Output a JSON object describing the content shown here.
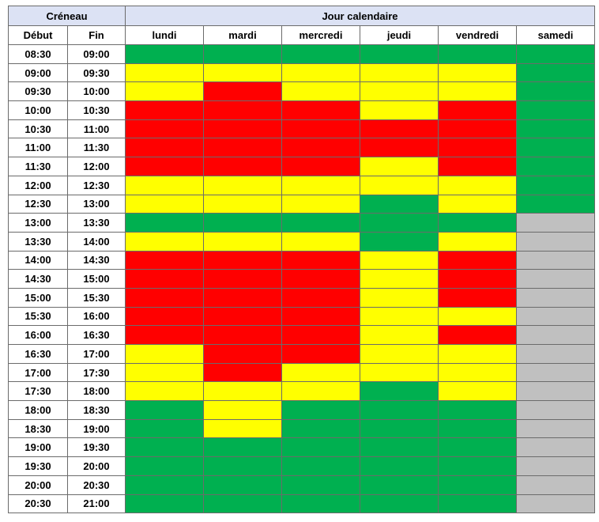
{
  "header": {
    "group_slot": "Créneau",
    "group_day": "Jour calendaire",
    "start": "Début",
    "end": "Fin",
    "days": [
      "lundi",
      "mardi",
      "mercredi",
      "jeudi",
      "vendredi",
      "samedi"
    ]
  },
  "rows": [
    {
      "start": "08:30",
      "end": "09:00",
      "cells": [
        "#00b050",
        "#00b050",
        "#00b050",
        "#00b050",
        "#00b050",
        "#00b050"
      ]
    },
    {
      "start": "09:00",
      "end": "09:30",
      "cells": [
        "#ffff00",
        "#ffff00",
        "#ffff00",
        "#ffff00",
        "#ffff00",
        "#00b050"
      ]
    },
    {
      "start": "09:30",
      "end": "10:00",
      "cells": [
        "#ffff00",
        "#ff0000",
        "#ffff00",
        "#ffff00",
        "#ffff00",
        "#00b050"
      ]
    },
    {
      "start": "10:00",
      "end": "10:30",
      "cells": [
        "#ff0000",
        "#ff0000",
        "#ff0000",
        "#ffff00",
        "#ff0000",
        "#00b050"
      ]
    },
    {
      "start": "10:30",
      "end": "11:00",
      "cells": [
        "#ff0000",
        "#ff0000",
        "#ff0000",
        "#ff0000",
        "#ff0000",
        "#00b050"
      ]
    },
    {
      "start": "11:00",
      "end": "11:30",
      "cells": [
        "#ff0000",
        "#ff0000",
        "#ff0000",
        "#ff0000",
        "#ff0000",
        "#00b050"
      ]
    },
    {
      "start": "11:30",
      "end": "12:00",
      "cells": [
        "#ff0000",
        "#ff0000",
        "#ff0000",
        "#ffff00",
        "#ff0000",
        "#00b050"
      ]
    },
    {
      "start": "12:00",
      "end": "12:30",
      "cells": [
        "#ffff00",
        "#ffff00",
        "#ffff00",
        "#ffff00",
        "#ffff00",
        "#00b050"
      ]
    },
    {
      "start": "12:30",
      "end": "13:00",
      "cells": [
        "#ffff00",
        "#ffff00",
        "#ffff00",
        "#00b050",
        "#ffff00",
        "#00b050"
      ]
    },
    {
      "start": "13:00",
      "end": "13:30",
      "cells": [
        "#00b050",
        "#00b050",
        "#00b050",
        "#00b050",
        "#00b050",
        "#c0c0c0"
      ]
    },
    {
      "start": "13:30",
      "end": "14:00",
      "cells": [
        "#ffff00",
        "#ffff00",
        "#ffff00",
        "#00b050",
        "#ffff00",
        "#c0c0c0"
      ]
    },
    {
      "start": "14:00",
      "end": "14:30",
      "cells": [
        "#ff0000",
        "#ff0000",
        "#ff0000",
        "#ffff00",
        "#ff0000",
        "#c0c0c0"
      ]
    },
    {
      "start": "14:30",
      "end": "15:00",
      "cells": [
        "#ff0000",
        "#ff0000",
        "#ff0000",
        "#ffff00",
        "#ff0000",
        "#c0c0c0"
      ]
    },
    {
      "start": "15:00",
      "end": "15:30",
      "cells": [
        "#ff0000",
        "#ff0000",
        "#ff0000",
        "#ffff00",
        "#ff0000",
        "#c0c0c0"
      ]
    },
    {
      "start": "15:30",
      "end": "16:00",
      "cells": [
        "#ff0000",
        "#ff0000",
        "#ff0000",
        "#ffff00",
        "#ffff00",
        "#c0c0c0"
      ]
    },
    {
      "start": "16:00",
      "end": "16:30",
      "cells": [
        "#ff0000",
        "#ff0000",
        "#ff0000",
        "#ffff00",
        "#ff0000",
        "#c0c0c0"
      ]
    },
    {
      "start": "16:30",
      "end": "17:00",
      "cells": [
        "#ffff00",
        "#ff0000",
        "#ff0000",
        "#ffff00",
        "#ffff00",
        "#c0c0c0"
      ]
    },
    {
      "start": "17:00",
      "end": "17:30",
      "cells": [
        "#ffff00",
        "#ff0000",
        "#ffff00",
        "#ffff00",
        "#ffff00",
        "#c0c0c0"
      ]
    },
    {
      "start": "17:30",
      "end": "18:00",
      "cells": [
        "#ffff00",
        "#ffff00",
        "#ffff00",
        "#00b050",
        "#ffff00",
        "#c0c0c0"
      ]
    },
    {
      "start": "18:00",
      "end": "18:30",
      "cells": [
        "#00b050",
        "#ffff00",
        "#00b050",
        "#00b050",
        "#00b050",
        "#c0c0c0"
      ]
    },
    {
      "start": "18:30",
      "end": "19:00",
      "cells": [
        "#00b050",
        "#ffff00",
        "#00b050",
        "#00b050",
        "#00b050",
        "#c0c0c0"
      ]
    },
    {
      "start": "19:00",
      "end": "19:30",
      "cells": [
        "#00b050",
        "#00b050",
        "#00b050",
        "#00b050",
        "#00b050",
        "#c0c0c0"
      ]
    },
    {
      "start": "19:30",
      "end": "20:00",
      "cells": [
        "#00b050",
        "#00b050",
        "#00b050",
        "#00b050",
        "#00b050",
        "#c0c0c0"
      ]
    },
    {
      "start": "20:00",
      "end": "20:30",
      "cells": [
        "#00b050",
        "#00b050",
        "#00b050",
        "#00b050",
        "#00b050",
        "#c0c0c0"
      ]
    },
    {
      "start": "20:30",
      "end": "21:00",
      "cells": [
        "#00b050",
        "#00b050",
        "#00b050",
        "#00b050",
        "#00b050",
        "#c0c0c0"
      ]
    }
  ]
}
